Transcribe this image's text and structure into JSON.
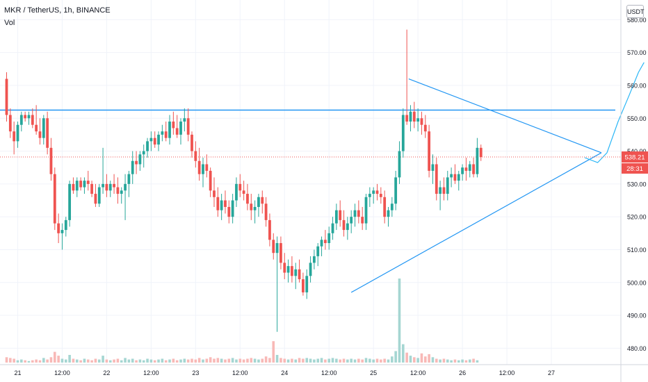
{
  "header": {
    "title": "MKR / TetherUS, 1h, BINANCE",
    "indicator": "Vol",
    "currency": "USDT"
  },
  "price_label": "538.21",
  "countdown_label": "28:31",
  "colors": {
    "up": "#26a69a",
    "down": "#ef5350",
    "up_vol": "#a5d6d2",
    "down_vol": "#f8b9b7",
    "trendline": "#2196f3",
    "projection": "#29b6f6",
    "price_line": "#ef5350",
    "grid": "#f0f3fa"
  },
  "chart_data": {
    "type": "candlestick",
    "yticks": [
      "480.00",
      "490.00",
      "500.00",
      "510.00",
      "520.00",
      "530.00",
      "540.00",
      "550.00",
      "560.00",
      "570.00",
      "580.00"
    ],
    "xticks": [
      {
        "label": "21",
        "i": 3
      },
      {
        "label": "12:00",
        "i": 15
      },
      {
        "label": "22",
        "i": 27
      },
      {
        "label": "12:00",
        "i": 39
      },
      {
        "label": "23",
        "i": 51
      },
      {
        "label": "12:00",
        "i": 63
      },
      {
        "label": "24",
        "i": 75
      },
      {
        "label": "12:00",
        "i": 87
      },
      {
        "label": "25",
        "i": 99
      },
      {
        "label": "12:00",
        "i": 111
      },
      {
        "label": "26",
        "i": 123
      },
      {
        "label": "12:00",
        "i": 135
      },
      {
        "label": "27",
        "i": 147
      }
    ],
    "ohlc": [
      [
        562.0,
        564.0,
        549.0,
        551.0
      ],
      [
        551.0,
        553.0,
        544.0,
        546.0
      ],
      [
        546.0,
        549.0,
        539.0,
        543.0
      ],
      [
        543.0,
        549.0,
        541.0,
        548.0
      ],
      [
        548.0,
        552.0,
        546.0,
        551.0
      ],
      [
        551.0,
        552.0,
        549.0,
        550.0
      ],
      [
        550.0,
        552.0,
        548.0,
        551.0
      ],
      [
        551.0,
        553.0,
        547.0,
        548.0
      ],
      [
        548.0,
        554.0,
        545.0,
        546.0
      ],
      [
        546.0,
        550.0,
        542.0,
        544.0
      ],
      [
        544.0,
        551.0,
        542.0,
        550.0
      ],
      [
        550.0,
        552.0,
        539.0,
        541.0
      ],
      [
        541.0,
        544.0,
        531.0,
        533.0
      ],
      [
        533.0,
        535.0,
        516.0,
        518.0
      ],
      [
        518.0,
        521.0,
        512.0,
        515.0
      ],
      [
        515.0,
        518.0,
        510.0,
        516.0
      ],
      [
        516.0,
        520.0,
        514.0,
        519.0
      ],
      [
        519.0,
        531.0,
        517.0,
        530.0
      ],
      [
        530.0,
        532.0,
        527.0,
        528.0
      ],
      [
        528.0,
        532.0,
        526.0,
        531.0
      ],
      [
        531.0,
        532.0,
        528.0,
        529.0
      ],
      [
        529.0,
        532.0,
        527.0,
        531.0
      ],
      [
        531.0,
        534.0,
        528.0,
        530.0
      ],
      [
        530.0,
        531.0,
        526.0,
        527.0
      ],
      [
        527.0,
        530.0,
        523.0,
        524.0
      ],
      [
        524.0,
        530.0,
        523.0,
        529.0
      ],
      [
        529.0,
        541.0,
        527.0,
        530.0
      ],
      [
        530.0,
        533.0,
        526.0,
        528.0
      ],
      [
        528.0,
        531.0,
        526.0,
        530.0
      ],
      [
        530.0,
        533.0,
        527.0,
        529.0
      ],
      [
        529.0,
        532.0,
        524.0,
        527.0
      ],
      [
        527.0,
        529.0,
        524.0,
        528.0
      ],
      [
        528.0,
        533.0,
        519.0,
        530.0
      ],
      [
        530.0,
        534.0,
        526.0,
        533.0
      ],
      [
        533.0,
        540.0,
        530.0,
        537.0
      ],
      [
        537.0,
        540.0,
        533.0,
        536.0
      ],
      [
        536.0,
        540.0,
        534.0,
        539.0
      ],
      [
        539.0,
        542.0,
        535.0,
        540.0
      ],
      [
        540.0,
        544.0,
        538.0,
        543.0
      ],
      [
        543.0,
        546.0,
        540.0,
        544.0
      ],
      [
        544.0,
        546.0,
        541.0,
        542.0
      ],
      [
        542.0,
        546.0,
        540.0,
        545.0
      ],
      [
        545.0,
        548.0,
        543.0,
        546.0
      ],
      [
        546.0,
        549.0,
        543.0,
        544.0
      ],
      [
        544.0,
        551.0,
        542.0,
        549.0
      ],
      [
        549.0,
        552.0,
        545.0,
        547.0
      ],
      [
        547.0,
        551.0,
        544.0,
        545.0
      ],
      [
        545.0,
        550.0,
        542.0,
        549.0
      ],
      [
        549.0,
        553.0,
        546.0,
        550.0
      ],
      [
        550.0,
        553.0,
        543.0,
        545.0
      ],
      [
        545.0,
        546.0,
        538.0,
        540.0
      ],
      [
        540.0,
        543.0,
        535.0,
        537.0
      ],
      [
        537.0,
        541.0,
        531.0,
        533.0
      ],
      [
        533.0,
        538.0,
        529.0,
        536.0
      ],
      [
        536.0,
        539.0,
        532.0,
        534.0
      ],
      [
        534.0,
        535.0,
        526.0,
        528.0
      ],
      [
        528.0,
        532.0,
        523.0,
        526.0
      ],
      [
        526.0,
        529.0,
        520.0,
        522.0
      ],
      [
        522.0,
        527.0,
        519.0,
        525.0
      ],
      [
        525.0,
        528.0,
        521.0,
        523.0
      ],
      [
        523.0,
        525.0,
        518.0,
        520.0
      ],
      [
        520.0,
        527.0,
        518.0,
        525.0
      ],
      [
        525.0,
        532.0,
        523.0,
        530.0
      ],
      [
        530.0,
        533.0,
        526.0,
        528.0
      ],
      [
        528.0,
        531.0,
        525.0,
        527.0
      ],
      [
        527.0,
        530.0,
        522.0,
        524.0
      ],
      [
        524.0,
        527.0,
        519.0,
        522.0
      ],
      [
        522.0,
        525.0,
        518.0,
        523.0
      ],
      [
        523.0,
        527.0,
        520.0,
        526.0
      ],
      [
        526.0,
        528.0,
        521.0,
        524.0
      ],
      [
        524.0,
        526.0,
        517.0,
        519.0
      ],
      [
        519.0,
        521.0,
        511.0,
        513.0
      ],
      [
        513.0,
        515.0,
        507.0,
        509.0
      ],
      [
        509.0,
        514.0,
        485.0,
        512.0
      ],
      [
        512.0,
        514.0,
        504.0,
        506.0
      ],
      [
        506.0,
        509.0,
        501.0,
        503.0
      ],
      [
        503.0,
        507.0,
        500.0,
        505.0
      ],
      [
        505.0,
        508.0,
        500.0,
        502.0
      ],
      [
        502.0,
        506.0,
        498.0,
        504.0
      ],
      [
        504.0,
        507.0,
        500.0,
        501.0
      ],
      [
        501.0,
        503.0,
        496.0,
        497.0
      ],
      [
        497.0,
        504.0,
        495.0,
        502.0
      ],
      [
        502.0,
        508.0,
        500.0,
        506.0
      ],
      [
        506.0,
        510.0,
        504.0,
        508.0
      ],
      [
        508.0,
        512.0,
        505.0,
        511.0
      ],
      [
        511.0,
        514.0,
        508.0,
        513.0
      ],
      [
        513.0,
        516.0,
        510.0,
        512.0
      ],
      [
        512.0,
        517.0,
        510.0,
        515.0
      ],
      [
        515.0,
        520.0,
        513.0,
        518.0
      ],
      [
        518.0,
        524.0,
        516.0,
        522.0
      ],
      [
        522.0,
        525.0,
        517.0,
        519.0
      ],
      [
        519.0,
        522.0,
        514.0,
        516.0
      ],
      [
        516.0,
        520.0,
        513.0,
        518.0
      ],
      [
        518.0,
        522.0,
        515.0,
        520.0
      ],
      [
        520.0,
        524.0,
        517.0,
        522.0
      ],
      [
        522.0,
        525.0,
        518.0,
        520.0
      ],
      [
        520.0,
        523.0,
        516.0,
        518.0
      ],
      [
        518.0,
        527.0,
        516.0,
        526.0
      ],
      [
        526.0,
        529.0,
        523.0,
        527.0
      ],
      [
        527.0,
        529.0,
        524.0,
        528.0
      ],
      [
        528.0,
        530.0,
        525.0,
        527.0
      ],
      [
        527.0,
        529.0,
        524.0,
        526.0
      ],
      [
        526.0,
        528.0,
        518.0,
        520.0
      ],
      [
        520.0,
        523.0,
        517.0,
        522.0
      ],
      [
        522.0,
        526.0,
        520.0,
        524.0
      ],
      [
        524.0,
        534.0,
        522.0,
        532.0
      ],
      [
        532.0,
        543.0,
        530.0,
        540.0
      ],
      [
        540.0,
        553.0,
        538.0,
        551.0
      ],
      [
        551.0,
        577.0,
        548.0,
        549.0
      ],
      [
        549.0,
        554.0,
        546.0,
        552.0
      ],
      [
        552.0,
        555.0,
        547.0,
        549.0
      ],
      [
        549.0,
        553.0,
        546.0,
        550.0
      ],
      [
        550.0,
        552.0,
        545.0,
        548.0
      ],
      [
        548.0,
        551.0,
        544.0,
        546.0
      ],
      [
        546.0,
        548.0,
        532.0,
        534.0
      ],
      [
        534.0,
        539.0,
        530.0,
        536.0
      ],
      [
        536.0,
        538.0,
        525.0,
        527.0
      ],
      [
        527.0,
        531.0,
        522.0,
        529.0
      ],
      [
        529.0,
        532.0,
        525.0,
        527.0
      ],
      [
        527.0,
        534.0,
        525.0,
        532.0
      ],
      [
        532.0,
        535.0,
        529.0,
        533.0
      ],
      [
        533.0,
        536.0,
        530.0,
        531.0
      ],
      [
        531.0,
        534.0,
        528.0,
        533.0
      ],
      [
        533.0,
        536.0,
        531.0,
        535.0
      ],
      [
        535.0,
        538.0,
        531.0,
        534.0
      ],
      [
        534.0,
        537.0,
        532.0,
        536.0
      ],
      [
        536.0,
        538.0,
        532.0,
        533.0
      ],
      [
        533.0,
        544.0,
        532.0,
        541.0
      ],
      [
        541.0,
        542.0,
        537.0,
        538.21
      ]
    ],
    "volume": [
      7,
      6,
      5,
      3,
      4,
      3,
      2,
      3,
      4,
      3,
      6,
      4,
      7,
      14,
      9,
      5,
      4,
      10,
      5,
      4,
      3,
      5,
      4,
      3,
      5,
      4,
      9,
      4,
      3,
      4,
      5,
      3,
      6,
      4,
      5,
      3,
      4,
      3,
      5,
      4,
      3,
      4,
      5,
      3,
      4,
      5,
      3,
      4,
      5,
      4,
      5,
      4,
      6,
      4,
      5,
      7,
      5,
      6,
      5,
      4,
      5,
      6,
      4,
      5,
      4,
      5,
      6,
      5,
      4,
      5,
      8,
      6,
      28,
      10,
      6,
      5,
      4,
      5,
      4,
      6,
      5,
      6,
      5,
      4,
      5,
      6,
      4,
      5,
      6,
      5,
      4,
      5,
      4,
      5,
      4,
      5,
      4,
      6,
      5,
      4,
      5,
      4,
      5,
      4,
      8,
      15,
      110,
      24,
      13,
      9,
      7,
      6,
      12,
      8,
      11,
      7,
      5,
      4,
      5,
      4,
      3,
      4,
      3,
      4,
      3,
      4,
      5,
      3
    ],
    "horizontal_line": 552.5,
    "trendlines": [
      {
        "from": [
          108.5,
          562.0
        ],
        "to": [
          160.5,
          539.5
        ]
      },
      {
        "from": [
          93.0,
          497.0
        ],
        "to": [
          160.5,
          539.5
        ]
      }
    ],
    "projection": [
      [
        156,
        538
      ],
      [
        159.5,
        536.5
      ],
      [
        162,
        539.5
      ],
      [
        165,
        549
      ],
      [
        168,
        557
      ],
      [
        170.5,
        564
      ],
      [
        172,
        567
      ]
    ],
    "current_price": 538.21,
    "countdown": "28:31",
    "ylim": [
      475.0,
      586.0
    ]
  }
}
